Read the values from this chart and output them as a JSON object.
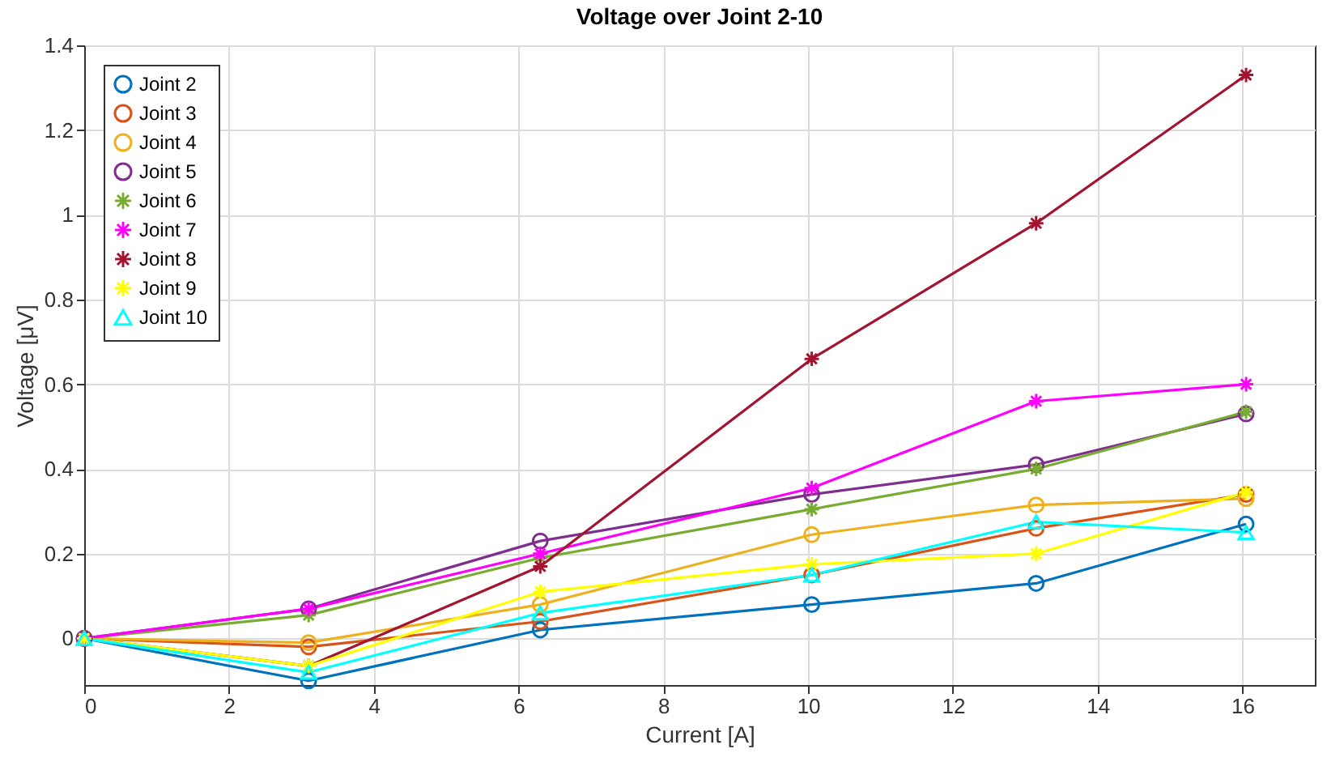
{
  "chart_data": {
    "type": "line",
    "title": "Voltage over Joint 2-10",
    "xlabel": "Current [A]",
    "ylabel": "Voltage [μV]",
    "x": [
      0,
      3.1,
      6.3,
      10.05,
      13.15,
      16.05
    ],
    "xlim": [
      0,
      17
    ],
    "ylim": [
      -0.11,
      1.4
    ],
    "xticks": [
      0,
      2,
      4,
      6,
      8,
      10,
      12,
      14,
      16
    ],
    "yticks": [
      0,
      0.2,
      0.4,
      0.6,
      0.8,
      1,
      1.2,
      1.4
    ],
    "grid": true,
    "legend": "top left",
    "series": [
      {
        "name": "Joint 2",
        "color": "#0072bd",
        "marker": "circle",
        "values": [
          0,
          -0.1,
          0.02,
          0.08,
          0.13,
          0.27
        ]
      },
      {
        "name": "Joint 3",
        "color": "#d95319",
        "marker": "circle",
        "values": [
          0,
          -0.02,
          0.04,
          0.15,
          0.26,
          0.34
        ]
      },
      {
        "name": "Joint 4",
        "color": "#edb120",
        "marker": "circle",
        "values": [
          0,
          -0.01,
          0.08,
          0.245,
          0.315,
          0.33
        ]
      },
      {
        "name": "Joint 5",
        "color": "#7e2f8e",
        "marker": "circle",
        "values": [
          0,
          0.07,
          0.23,
          0.34,
          0.41,
          0.53
        ]
      },
      {
        "name": "Joint 6",
        "color": "#77ac30",
        "marker": "cross",
        "values": [
          0,
          0.055,
          0.19,
          0.305,
          0.4,
          0.535
        ]
      },
      {
        "name": "Joint 7",
        "color": "#ff00ff",
        "marker": "cross",
        "values": [
          0,
          0.07,
          0.2,
          0.355,
          0.56,
          0.6
        ]
      },
      {
        "name": "Joint 8",
        "color": "#a2142f",
        "marker": "cross",
        "values": [
          0,
          -0.065,
          0.17,
          0.66,
          0.98,
          1.33
        ]
      },
      {
        "name": "Joint 9",
        "color": "#ffff00",
        "marker": "cross",
        "values": [
          0,
          -0.065,
          0.11,
          0.175,
          0.2,
          0.345
        ]
      },
      {
        "name": "Joint 10",
        "color": "#00ffff",
        "marker": "triangle",
        "values": [
          0,
          -0.08,
          0.06,
          0.15,
          0.275,
          0.25
        ]
      }
    ]
  }
}
